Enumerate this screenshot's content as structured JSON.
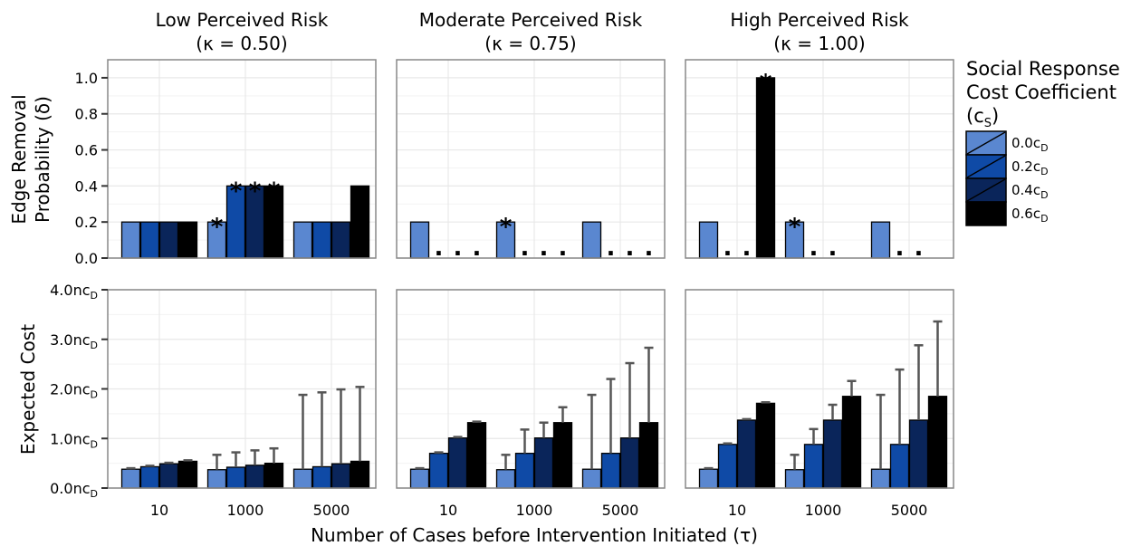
{
  "chart_data": [
    {
      "type": "bar",
      "panel_title": [
        "Low Perceived Risk",
        "(κ = 0.50)"
      ],
      "ylabel": [
        "Edge Removal",
        "Probability (δ)"
      ],
      "categories": [
        "10",
        "1000",
        "5000"
      ],
      "ylim": [
        0,
        1.1
      ],
      "yticks": [
        "0.0",
        "0.2",
        "0.4",
        "0.6",
        "0.8",
        "1.0"
      ],
      "series": [
        {
          "name": "0.0cD",
          "values": [
            0.2,
            0.2,
            0.2
          ]
        },
        {
          "name": "0.2cD",
          "values": [
            0.2,
            0.4,
            0.2
          ]
        },
        {
          "name": "0.4cD",
          "values": [
            0.2,
            0.4,
            0.2
          ]
        },
        {
          "name": "0.6cD",
          "values": [
            0.2,
            0.4,
            0.4
          ]
        }
      ],
      "stars": [
        [
          false,
          true,
          false
        ],
        [
          false,
          true,
          false
        ],
        [
          false,
          true,
          false
        ],
        [
          false,
          true,
          false
        ]
      ],
      "dots": [
        [
          false,
          false,
          false
        ],
        [
          false,
          false,
          false
        ],
        [
          false,
          false,
          false
        ],
        [
          false,
          false,
          false
        ]
      ],
      "star_symbol": "*",
      "dot_symbol": "."
    },
    {
      "type": "bar",
      "panel_title": [
        "Moderate Perceived Risk",
        "(κ = 0.75)"
      ],
      "categories": [
        "10",
        "1000",
        "5000"
      ],
      "ylim": [
        0,
        1.1
      ],
      "series": [
        {
          "name": "0.0cD",
          "values": [
            0.2,
            0.2,
            0.2
          ]
        },
        {
          "name": "0.2cD",
          "values": [
            0,
            0,
            0
          ]
        },
        {
          "name": "0.4cD",
          "values": [
            0,
            0,
            0
          ]
        },
        {
          "name": "0.6cD",
          "values": [
            0,
            0,
            0
          ]
        }
      ],
      "stars": [
        [
          false,
          true,
          false
        ],
        [
          false,
          false,
          false
        ],
        [
          false,
          false,
          false
        ],
        [
          false,
          false,
          false
        ]
      ],
      "dots": [
        [
          false,
          false,
          false
        ],
        [
          true,
          true,
          true
        ],
        [
          true,
          true,
          true
        ],
        [
          true,
          true,
          true
        ]
      ],
      "star_symbol": "*",
      "dot_symbol": "."
    },
    {
      "type": "bar",
      "panel_title": [
        "High Perceived Risk",
        "(κ = 1.00)"
      ],
      "categories": [
        "10",
        "1000",
        "5000"
      ],
      "ylim": [
        0,
        1.1
      ],
      "series": [
        {
          "name": "0.0cD",
          "values": [
            0.2,
            0.2,
            0.2
          ]
        },
        {
          "name": "0.2cD",
          "values": [
            0,
            0,
            0
          ]
        },
        {
          "name": "0.4cD",
          "values": [
            0,
            0,
            0
          ]
        },
        {
          "name": "0.6cD",
          "values": [
            1.0,
            0,
            0
          ]
        }
      ],
      "stars": [
        [
          false,
          true,
          false
        ],
        [
          false,
          false,
          false
        ],
        [
          false,
          false,
          false
        ],
        [
          true,
          false,
          false
        ]
      ],
      "dots": [
        [
          false,
          false,
          false
        ],
        [
          true,
          true,
          true
        ],
        [
          true,
          true,
          true
        ],
        [
          false,
          false,
          false
        ]
      ],
      "star_symbol": "*",
      "dot_symbol": "."
    },
    {
      "type": "bar",
      "ylabel": "Expected Cost",
      "categories": [
        "10",
        "1000",
        "5000"
      ],
      "ylim": [
        0,
        4.0
      ],
      "yticks": [
        "0.0nc",
        "1.0nc",
        "2.0nc",
        "3.0nc",
        "4.0nc"
      ],
      "ytick_subscript": "D",
      "series": [
        {
          "name": "0.0cD",
          "values": [
            0.38,
            0.37,
            0.38
          ],
          "error_upper": [
            0.4,
            0.67,
            1.88
          ]
        },
        {
          "name": "0.2cD",
          "values": [
            0.43,
            0.42,
            0.43
          ],
          "error_upper": [
            0.45,
            0.72,
            1.93
          ]
        },
        {
          "name": "0.4cD",
          "values": [
            0.49,
            0.46,
            0.49
          ],
          "error_upper": [
            0.51,
            0.76,
            1.99
          ]
        },
        {
          "name": "0.6cD",
          "values": [
            0.54,
            0.5,
            0.54
          ],
          "error_upper": [
            0.56,
            0.8,
            2.04
          ]
        }
      ]
    },
    {
      "type": "bar",
      "categories": [
        "10",
        "1000",
        "5000"
      ],
      "ylim": [
        0,
        4.0
      ],
      "series": [
        {
          "name": "0.0cD",
          "values": [
            0.38,
            0.37,
            0.38
          ],
          "error_upper": [
            0.4,
            0.67,
            1.88
          ]
        },
        {
          "name": "0.2cD",
          "values": [
            0.7,
            0.7,
            0.7
          ],
          "error_upper": [
            0.72,
            1.18,
            2.2
          ]
        },
        {
          "name": "0.4cD",
          "values": [
            1.01,
            1.01,
            1.01
          ],
          "error_upper": [
            1.03,
            1.32,
            2.52
          ]
        },
        {
          "name": "0.6cD",
          "values": [
            1.32,
            1.32,
            1.32
          ],
          "error_upper": [
            1.34,
            1.63,
            2.83
          ]
        }
      ]
    },
    {
      "type": "bar",
      "categories": [
        "10",
        "1000",
        "5000"
      ],
      "ylim": [
        0,
        4.0
      ],
      "series": [
        {
          "name": "0.0cD",
          "values": [
            0.38,
            0.37,
            0.38
          ],
          "error_upper": [
            0.4,
            0.67,
            1.88
          ]
        },
        {
          "name": "0.2cD",
          "values": [
            0.88,
            0.88,
            0.88
          ],
          "error_upper": [
            0.9,
            1.19,
            2.39
          ]
        },
        {
          "name": "0.4cD",
          "values": [
            1.37,
            1.37,
            1.37
          ],
          "error_upper": [
            1.39,
            1.68,
            2.88
          ]
        },
        {
          "name": "0.6cD",
          "values": [
            1.71,
            1.85,
            1.85
          ],
          "error_upper": [
            1.73,
            2.16,
            3.36
          ]
        }
      ]
    }
  ],
  "xlabel": "Number of Cases before Intervention Initiated (τ)",
  "legend": {
    "title": [
      "Social Response",
      "Cost Coefficient"
    ],
    "title_symbol": "(c",
    "title_subscript": "S",
    "title_close": ")",
    "items": [
      {
        "prefix": "0.0c",
        "sub": "D",
        "color": "#5a87d0"
      },
      {
        "prefix": "0.2c",
        "sub": "D",
        "color": "#0f4aa6"
      },
      {
        "prefix": "0.4c",
        "sub": "D",
        "color": "#0a255a"
      },
      {
        "prefix": "0.6c",
        "sub": "D",
        "color": "#000000"
      }
    ]
  },
  "colors": {
    "grid": "#e8e8e8",
    "panel_border": "#888888",
    "error_bar": "#555555"
  }
}
